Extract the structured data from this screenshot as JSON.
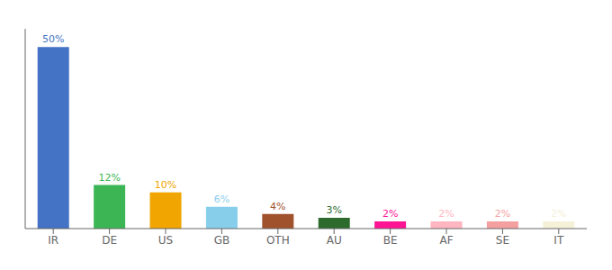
{
  "chart_data": {
    "type": "bar",
    "categories": [
      "IR",
      "DE",
      "US",
      "GB",
      "OTH",
      "AU",
      "BE",
      "AF",
      "SE",
      "IT"
    ],
    "values": [
      50,
      12,
      10,
      6,
      4,
      3,
      2,
      2,
      2,
      2
    ],
    "value_labels": [
      "50%",
      "12%",
      "10%",
      "6%",
      "4%",
      "3%",
      "2%",
      "2%",
      "2%",
      "2%"
    ],
    "colors": [
      "#4472c4",
      "#3cb554",
      "#f0a500",
      "#87ceeb",
      "#a0522d",
      "#2d6a2d",
      "#ff1493",
      "#ffb6c1",
      "#f4a0a0",
      "#f5f0d8"
    ],
    "ylim": [
      0,
      55
    ],
    "data_labels": true,
    "tick_labels": "x",
    "grid": false
  }
}
